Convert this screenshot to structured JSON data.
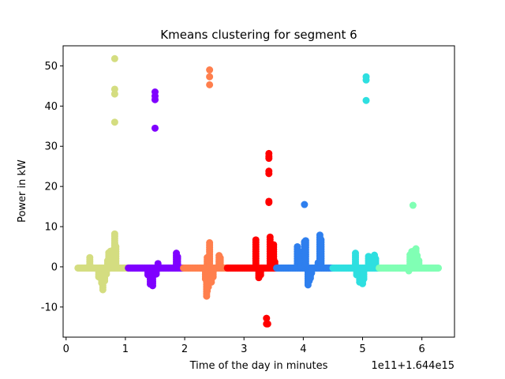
{
  "chart_data": {
    "type": "scatter",
    "title": "Kmeans clustering for segment 6",
    "xlabel": "Time of the day in minutes",
    "ylabel": "Power in kW",
    "offset_text": "1e11+1.644e15",
    "xlim": [
      -0.05,
      6.55
    ],
    "ylim": [
      -17.5,
      55
    ],
    "xticks": [
      0,
      1,
      2,
      3,
      4,
      5,
      6
    ],
    "yticks": [
      -10,
      0,
      10,
      20,
      30,
      40,
      50
    ],
    "grid": false,
    "clusters": [
      {
        "color": "#d4dd80",
        "range": [
          0.2,
          1.05
        ],
        "baseline": -0.3,
        "points": [
          [
            0.4,
            2.3
          ],
          [
            0.55,
            -2.5
          ],
          [
            0.6,
            -4.0
          ],
          [
            0.62,
            -5.7
          ],
          [
            0.65,
            -3.5
          ],
          [
            0.68,
            -1.8
          ],
          [
            0.7,
            1.5
          ],
          [
            0.72,
            3.5
          ],
          [
            0.75,
            3.9
          ],
          [
            0.8,
            4.2
          ],
          [
            0.82,
            51.8
          ],
          [
            0.82,
            44.2
          ],
          [
            0.82,
            43.0
          ],
          [
            0.82,
            36.0
          ],
          [
            0.82,
            8.2
          ],
          [
            0.82,
            5.8
          ],
          [
            0.82,
            4.0
          ],
          [
            0.82,
            2.0
          ],
          [
            0.84,
            5.0
          ]
        ]
      },
      {
        "color": "#7f00ff",
        "range": [
          1.05,
          1.98
        ],
        "baseline": -0.3,
        "points": [
          [
            1.38,
            -2.0
          ],
          [
            1.42,
            -4.3
          ],
          [
            1.46,
            -4.7
          ],
          [
            1.5,
            43.5
          ],
          [
            1.5,
            42.5
          ],
          [
            1.5,
            41.6
          ],
          [
            1.5,
            34.5
          ],
          [
            1.52,
            -1.8
          ],
          [
            1.55,
            0.8
          ],
          [
            1.86,
            3.4
          ],
          [
            1.88,
            2.5
          ]
        ]
      },
      {
        "color": "#ff7f4d",
        "range": [
          1.98,
          2.72
        ],
        "baseline": -0.3,
        "points": [
          [
            2.35,
            -3.0
          ],
          [
            2.37,
            -7.3
          ],
          [
            2.38,
            -6.0
          ],
          [
            2.38,
            2.3
          ],
          [
            2.4,
            -5.0
          ],
          [
            2.42,
            6.0
          ],
          [
            2.42,
            45.3
          ],
          [
            2.42,
            47.3
          ],
          [
            2.42,
            49.0
          ],
          [
            2.45,
            -3.8
          ],
          [
            2.48,
            -2.5
          ],
          [
            2.58,
            2.8
          ],
          [
            2.6,
            2.2
          ]
        ]
      },
      {
        "color": "#ff0000",
        "range": [
          2.72,
          3.55
        ],
        "baseline": -0.3,
        "points": [
          [
            3.2,
            6.7
          ],
          [
            3.25,
            -2.7
          ],
          [
            3.28,
            -2.0
          ],
          [
            3.38,
            -12.8
          ],
          [
            3.38,
            -14.2
          ],
          [
            3.4,
            -14.2
          ],
          [
            3.42,
            28.2
          ],
          [
            3.42,
            27.5
          ],
          [
            3.42,
            27.0
          ],
          [
            3.42,
            23.8
          ],
          [
            3.42,
            23.2
          ],
          [
            3.42,
            16.3
          ],
          [
            3.42,
            16.0
          ],
          [
            3.44,
            7.4
          ],
          [
            3.5,
            5.5
          ],
          [
            3.52,
            1.2
          ]
        ]
      },
      {
        "color": "#2e7fee",
        "range": [
          3.55,
          4.5
        ],
        "baseline": -0.3,
        "points": [
          [
            3.9,
            5.0
          ],
          [
            3.92,
            3.8
          ],
          [
            3.95,
            2.3
          ],
          [
            4.02,
            15.5
          ],
          [
            4.02,
            6.2
          ],
          [
            4.04,
            6.5
          ],
          [
            4.08,
            -4.5
          ],
          [
            4.1,
            -3.5
          ],
          [
            4.12,
            -2.8
          ],
          [
            4.14,
            -1.5
          ],
          [
            4.25,
            1.0
          ],
          [
            4.28,
            7.9
          ],
          [
            4.3,
            6.7
          ]
        ]
      },
      {
        "color": "#2edfe0",
        "range": [
          4.5,
          5.28
        ],
        "baseline": -0.3,
        "points": [
          [
            4.88,
            3.4
          ],
          [
            4.9,
            -2.0
          ],
          [
            4.95,
            -3.8
          ],
          [
            5.0,
            -4.2
          ],
          [
            5.02,
            -3.0
          ],
          [
            5.06,
            47.3
          ],
          [
            5.06,
            46.5
          ],
          [
            5.06,
            41.4
          ],
          [
            5.1,
            2.6
          ],
          [
            5.2,
            2.9
          ],
          [
            5.22,
            2.0
          ]
        ]
      },
      {
        "color": "#80ffb4",
        "range": [
          5.28,
          6.28
        ],
        "baseline": -0.3,
        "points": [
          [
            5.78,
            -1.0
          ],
          [
            5.8,
            3.0
          ],
          [
            5.83,
            3.8
          ],
          [
            5.85,
            15.3
          ],
          [
            5.87,
            4.0
          ],
          [
            5.9,
            4.5
          ],
          [
            5.92,
            2.8
          ],
          [
            5.95,
            1.5
          ]
        ]
      }
    ]
  }
}
